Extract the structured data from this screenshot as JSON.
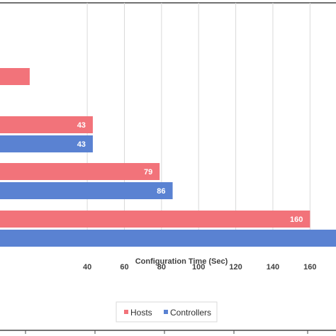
{
  "chart_data": {
    "type": "bar",
    "orientation": "horizontal",
    "xlabel": "Configuration Time (Sec)",
    "x_ticks": [
      40,
      60,
      80,
      100,
      120,
      140,
      160
    ],
    "x_tick_labels": [
      "40",
      "60",
      "80",
      "100",
      "120",
      "140",
      "160"
    ],
    "xlim": [
      -7,
      174
    ],
    "grid": true,
    "legend_position": "bottom",
    "groups": [
      {
        "Hosts": 9
      },
      {
        "Hosts": 43,
        "Controllers": 43
      },
      {
        "Hosts": 79,
        "Controllers": 86
      },
      {
        "Hosts": 160,
        "Controllers": 175
      }
    ],
    "series": [
      {
        "name": "Hosts",
        "color": "#F2737A",
        "values": [
          9,
          43,
          79,
          160
        ],
        "labels": [
          "",
          "43",
          "79",
          "160"
        ]
      },
      {
        "name": "Controllers",
        "color": "#5A82D2",
        "values": [
          null,
          43,
          86,
          175
        ],
        "labels": [
          "",
          "43",
          "86",
          ""
        ]
      }
    ]
  }
}
